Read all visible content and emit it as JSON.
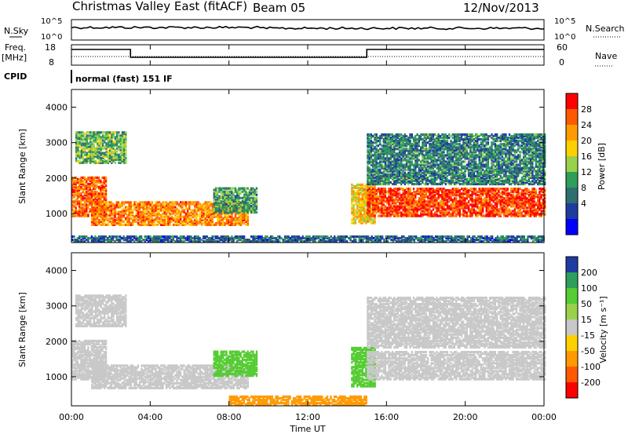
{
  "header": {
    "station": "Christmas Valley East (fitACF)",
    "beam": "Beam 05",
    "date": "12/Nov/2013"
  },
  "top_panels": {
    "nsky_label": "N.Sky",
    "nsky_ticks": [
      "10^5",
      "10^0"
    ],
    "nsearch_label": "N.Search",
    "nsearch_ticks": [
      "10^5",
      "10^0"
    ],
    "freq_label_1": "Freq.",
    "freq_label_2": "[MHz]",
    "freq_ticks": [
      "18",
      "8"
    ],
    "nave_label": "Nave",
    "nave_ticks": [
      "60",
      "0"
    ],
    "cpid_label": "CPID",
    "cpid_value": "normal (fast) 151 IF"
  },
  "chart_data": [
    {
      "type": "heatmap",
      "panel": "power",
      "title": "",
      "xlabel": "",
      "ylabel": "Slant Range [km]",
      "xlim": [
        0,
        24
      ],
      "ylim": [
        180,
        4500
      ],
      "y_ticks": [
        1000,
        2000,
        3000,
        4000
      ],
      "colorbar_label": "Power [dB]",
      "colorbar_ticks": [
        "28",
        "24",
        "20",
        "16",
        "12",
        "8",
        "4"
      ],
      "colorbar_colors": [
        "#ff0000",
        "#ff5a00",
        "#ff9a00",
        "#ffd000",
        "#9ad14a",
        "#2e9e5b",
        "#2e6e6e",
        "#1e3ca0",
        "#0000ff"
      ],
      "regions": [
        {
          "t0": 0.0,
          "t1": 1.8,
          "r0": 900,
          "r1": 2000,
          "level": 24
        },
        {
          "t0": 0.2,
          "t1": 2.8,
          "r0": 2400,
          "r1": 3300,
          "level": 12
        },
        {
          "t0": 1.0,
          "t1": 9.0,
          "r0": 650,
          "r1": 1300,
          "level": 22
        },
        {
          "t0": 7.2,
          "t1": 9.4,
          "r0": 1000,
          "r1": 1700,
          "level": 10
        },
        {
          "t0": 14.2,
          "t1": 15.4,
          "r0": 700,
          "r1": 1800,
          "level": 18
        },
        {
          "t0": 15.0,
          "t1": 24.0,
          "r0": 900,
          "r1": 1700,
          "level": 26
        },
        {
          "t0": 15.0,
          "t1": 24.0,
          "r0": 1800,
          "r1": 3200,
          "level": 8
        },
        {
          "t0": 0.0,
          "t1": 24.0,
          "r0": 180,
          "r1": 350,
          "level": 6
        }
      ]
    },
    {
      "type": "heatmap",
      "panel": "velocity",
      "title": "",
      "xlabel": "Time UT",
      "ylabel": "Slant Range [km]",
      "xlim": [
        0,
        24
      ],
      "ylim": [
        180,
        4500
      ],
      "x_ticks": [
        "00:00",
        "04:00",
        "08:00",
        "12:00",
        "16:00",
        "20:00",
        "00:00"
      ],
      "y_ticks": [
        1000,
        2000,
        3000,
        4000
      ],
      "colorbar_label": "Velocity [m s⁻¹]",
      "colorbar_ticks": [
        "200",
        "100",
        "50",
        "15",
        "-15",
        "-50",
        "-100",
        "-200"
      ],
      "colorbar_colors": [
        "#1e3ca0",
        "#2e9e5b",
        "#55cc33",
        "#9ad14a",
        "#c8c8c8",
        "#ffd000",
        "#ff9a00",
        "#ff5a00",
        "#ff0000"
      ],
      "regions": [
        {
          "t0": 0.0,
          "t1": 1.8,
          "r0": 900,
          "r1": 2000,
          "velocity": 0
        },
        {
          "t0": 0.2,
          "t1": 2.8,
          "r0": 2400,
          "r1": 3300,
          "velocity": 0
        },
        {
          "t0": 1.0,
          "t1": 9.0,
          "r0": 650,
          "r1": 1300,
          "velocity": 0
        },
        {
          "t0": 7.2,
          "t1": 9.4,
          "r0": 1000,
          "r1": 1700,
          "velocity": 40
        },
        {
          "t0": 14.2,
          "t1": 15.4,
          "r0": 700,
          "r1": 1800,
          "velocity": 40
        },
        {
          "t0": 15.0,
          "t1": 24.0,
          "r0": 900,
          "r1": 1700,
          "velocity": 0
        },
        {
          "t0": 15.0,
          "t1": 24.0,
          "r0": 1800,
          "r1": 3200,
          "velocity": 0
        },
        {
          "t0": 8.0,
          "t1": 15.0,
          "r0": 180,
          "r1": 450,
          "velocity": -60
        }
      ]
    }
  ]
}
